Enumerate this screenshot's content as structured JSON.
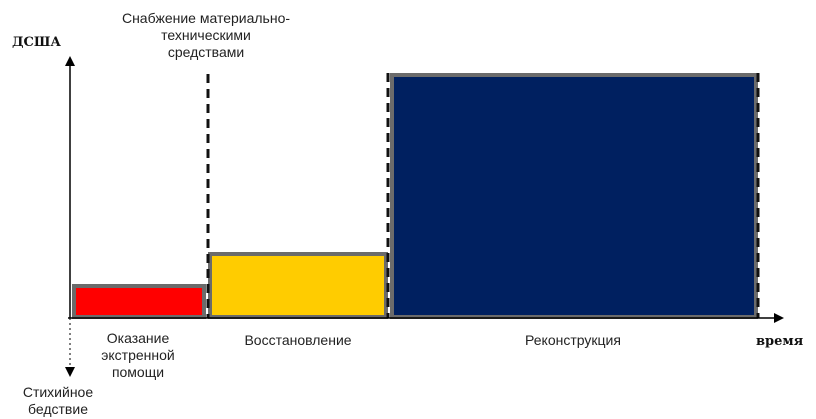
{
  "axes": {
    "y_label": "ДСША",
    "x_label": "время"
  },
  "supply_label_lines": [
    "Снабжение материально-",
    "техническими",
    "средствами"
  ],
  "disaster_label_lines": [
    "Стихийное",
    "бедствие"
  ],
  "phases": [
    {
      "name_lines": [
        "Оказание",
        "экстренной",
        "помощи"
      ],
      "fill": "#ff0000",
      "level": 0.14
    },
    {
      "name_lines": [
        "Восстановление"
      ],
      "fill": "#ffcc00",
      "level": 0.27
    },
    {
      "name_lines": [
        "Реконструкция"
      ],
      "fill": "#002060",
      "level": 1.0
    }
  ],
  "colors": {
    "axis": "#000000",
    "bar_border": "#6b6b6b",
    "divider": "#111111"
  }
}
